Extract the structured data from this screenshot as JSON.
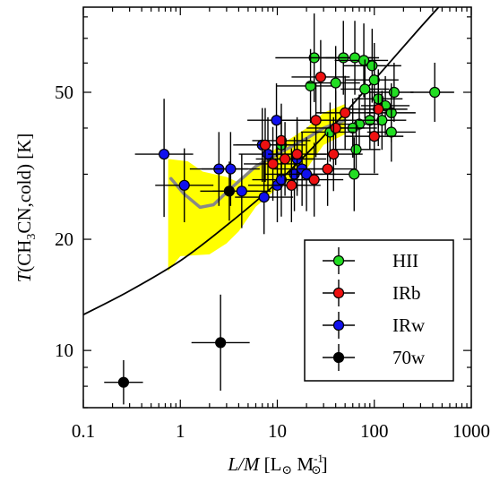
{
  "chart_data": {
    "type": "scatter",
    "xscale": "log",
    "yscale": "log",
    "xlim": [
      0.1,
      1000
    ],
    "ylim": [
      7,
      85
    ],
    "x_ticks": [
      "0.1",
      "1",
      "10",
      "100",
      "1000"
    ],
    "y_ticks": [
      "10",
      "20",
      "50"
    ],
    "xlabel": {
      "italic": "L/M",
      "rest": " [L",
      "sun": "⊙",
      "rest2": " M",
      "sup": "-1",
      "sun2": "⊙",
      "end": "]"
    },
    "ylabel": {
      "italic": "T",
      "rest": "(CH",
      "sub": "3",
      "rest2": "CN,cold) [K]"
    },
    "legend": {
      "position": "bottom-right"
    },
    "colors": {
      "HII": "#22dd22",
      "IRb": "#ee1111",
      "IRw": "#1111ee",
      "70w": "#000000",
      "band": "#ffff00",
      "median": "#888888",
      "model": "#000000"
    },
    "series": [
      {
        "name": "HII",
        "key": "HII",
        "points": [
          {
            "x": 24,
            "y": 62,
            "xerr": [
              0.4,
              0.3
            ],
            "yerr": [
              0.12,
              0.12
            ]
          },
          {
            "x": 48,
            "y": 62,
            "xerr": [
              0.35,
              0.3
            ],
            "yerr": [
              0.1,
              0.1
            ]
          },
          {
            "x": 63,
            "y": 62,
            "xerr": [
              0.3,
              0.25
            ],
            "yerr": [
              0.1,
              0.1
            ]
          },
          {
            "x": 78,
            "y": 61,
            "xerr": [
              0.3,
              0.25
            ],
            "yerr": [
              0.1,
              0.1
            ]
          },
          {
            "x": 95,
            "y": 59,
            "xerr": [
              0.3,
              0.3
            ],
            "yerr": [
              0.1,
              0.1
            ]
          },
          {
            "x": 22,
            "y": 52,
            "xerr": [
              0.35,
              0.3
            ],
            "yerr": [
              0.1,
              0.1
            ]
          },
          {
            "x": 40,
            "y": 53,
            "xerr": [
              0.3,
              0.25
            ],
            "yerr": [
              0.1,
              0.1
            ]
          },
          {
            "x": 80,
            "y": 51,
            "xerr": [
              0.25,
              0.25
            ],
            "yerr": [
              0.08,
              0.08
            ]
          },
          {
            "x": 100,
            "y": 54,
            "xerr": [
              0.3,
              0.25
            ],
            "yerr": [
              0.1,
              0.1
            ]
          },
          {
            "x": 160,
            "y": 50,
            "xerr": [
              0.25,
              0.2
            ],
            "yerr": [
              0.08,
              0.08
            ]
          },
          {
            "x": 420,
            "y": 50,
            "xerr": [
              0.25,
              0.2
            ],
            "yerr": [
              0.08,
              0.08
            ]
          },
          {
            "x": 110,
            "y": 48,
            "xerr": [
              0.25,
              0.25
            ],
            "yerr": [
              0.08,
              0.08
            ]
          },
          {
            "x": 130,
            "y": 46,
            "xerr": [
              0.25,
              0.25
            ],
            "yerr": [
              0.08,
              0.08
            ]
          },
          {
            "x": 150,
            "y": 44,
            "xerr": [
              0.25,
              0.25
            ],
            "yerr": [
              0.08,
              0.08
            ]
          },
          {
            "x": 90,
            "y": 42,
            "xerr": [
              0.25,
              0.25
            ],
            "yerr": [
              0.08,
              0.08
            ]
          },
          {
            "x": 70,
            "y": 41,
            "xerr": [
              0.25,
              0.25
            ],
            "yerr": [
              0.08,
              0.08
            ]
          },
          {
            "x": 120,
            "y": 42,
            "xerr": [
              0.25,
              0.25
            ],
            "yerr": [
              0.08,
              0.08
            ]
          },
          {
            "x": 60,
            "y": 40,
            "xerr": [
              0.25,
              0.25
            ],
            "yerr": [
              0.08,
              0.08
            ]
          },
          {
            "x": 35,
            "y": 39,
            "xerr": [
              0.3,
              0.25
            ],
            "yerr": [
              0.08,
              0.08
            ]
          },
          {
            "x": 150,
            "y": 39,
            "xerr": [
              0.25,
              0.25
            ],
            "yerr": [
              0.08,
              0.08
            ]
          },
          {
            "x": 11,
            "y": 36,
            "xerr": [
              0.25,
              0.25
            ],
            "yerr": [
              0.08,
              0.08
            ]
          },
          {
            "x": 65,
            "y": 35,
            "xerr": [
              0.25,
              0.25
            ],
            "yerr": [
              0.08,
              0.08
            ]
          },
          {
            "x": 62,
            "y": 30,
            "xerr": [
              0.25,
              0.25
            ],
            "yerr": [
              0.1,
              0.1
            ]
          }
        ]
      },
      {
        "name": "IRb",
        "key": "IRb",
        "points": [
          {
            "x": 28,
            "y": 55,
            "xerr": [
              0.3,
              0.3
            ],
            "yerr": [
              0.1,
              0.1
            ]
          },
          {
            "x": 110,
            "y": 45,
            "xerr": [
              0.3,
              0.3
            ],
            "yerr": [
              0.1,
              0.1
            ]
          },
          {
            "x": 50,
            "y": 44,
            "xerr": [
              0.3,
              0.3
            ],
            "yerr": [
              0.1,
              0.1
            ]
          },
          {
            "x": 25,
            "y": 42,
            "xerr": [
              0.35,
              0.3
            ],
            "yerr": [
              0.1,
              0.1
            ]
          },
          {
            "x": 40,
            "y": 40,
            "xerr": [
              0.3,
              0.3
            ],
            "yerr": [
              0.1,
              0.1
            ]
          },
          {
            "x": 11,
            "y": 37,
            "xerr": [
              0.3,
              0.3
            ],
            "yerr": [
              0.1,
              0.1
            ]
          },
          {
            "x": 100,
            "y": 38,
            "xerr": [
              0.3,
              0.3
            ],
            "yerr": [
              0.1,
              0.1
            ]
          },
          {
            "x": 7.5,
            "y": 36,
            "xerr": [
              0.3,
              0.3
            ],
            "yerr": [
              0.1,
              0.1
            ]
          },
          {
            "x": 16,
            "y": 34,
            "xerr": [
              0.3,
              0.3
            ],
            "yerr": [
              0.1,
              0.1
            ]
          },
          {
            "x": 38,
            "y": 34,
            "xerr": [
              0.3,
              0.3
            ],
            "yerr": [
              0.1,
              0.1
            ]
          },
          {
            "x": 33,
            "y": 31,
            "xerr": [
              0.3,
              0.3
            ],
            "yerr": [
              0.1,
              0.1
            ]
          },
          {
            "x": 24,
            "y": 29,
            "xerr": [
              0.3,
              0.3
            ],
            "yerr": [
              0.1,
              0.1
            ]
          },
          {
            "x": 14,
            "y": 28,
            "xerr": [
              0.3,
              0.3
            ],
            "yerr": [
              0.1,
              0.1
            ]
          },
          {
            "x": 9,
            "y": 32,
            "xerr": [
              0.3,
              0.3
            ],
            "yerr": [
              0.1,
              0.1
            ]
          },
          {
            "x": 12,
            "y": 33,
            "xerr": [
              0.3,
              0.3
            ],
            "yerr": [
              0.1,
              0.1
            ]
          }
        ]
      },
      {
        "name": "IRw",
        "key": "IRw",
        "points": [
          {
            "x": 0.68,
            "y": 34,
            "xerr": [
              0.3,
              0.3
            ],
            "yerr": [
              0.17,
              0.15
            ]
          },
          {
            "x": 1.1,
            "y": 28,
            "xerr": [
              0.3,
              0.3
            ],
            "yerr": [
              0.1,
              0.1
            ]
          },
          {
            "x": 2.5,
            "y": 31,
            "xerr": [
              0.3,
              0.3
            ],
            "yerr": [
              0.1,
              0.1
            ]
          },
          {
            "x": 3.3,
            "y": 31,
            "xerr": [
              0.3,
              0.3
            ],
            "yerr": [
              0.1,
              0.1
            ]
          },
          {
            "x": 4.3,
            "y": 27,
            "xerr": [
              0.3,
              0.3
            ],
            "yerr": [
              0.1,
              0.1
            ]
          },
          {
            "x": 7.3,
            "y": 26,
            "xerr": [
              0.3,
              0.3
            ],
            "yerr": [
              0.1,
              0.1
            ]
          },
          {
            "x": 7,
            "y": 36,
            "xerr": [
              0.3,
              0.3
            ],
            "yerr": [
              0.1,
              0.1
            ]
          },
          {
            "x": 8,
            "y": 34,
            "xerr": [
              0.3,
              0.3
            ],
            "yerr": [
              0.1,
              0.1
            ]
          },
          {
            "x": 9.8,
            "y": 42,
            "xerr": [
              0.3,
              0.3
            ],
            "yerr": [
              0.1,
              0.1
            ]
          },
          {
            "x": 10,
            "y": 28,
            "xerr": [
              0.3,
              0.3
            ],
            "yerr": [
              0.1,
              0.1
            ]
          },
          {
            "x": 11,
            "y": 29,
            "xerr": [
              0.3,
              0.3
            ],
            "yerr": [
              0.1,
              0.1
            ]
          },
          {
            "x": 15,
            "y": 30,
            "xerr": [
              0.3,
              0.3
            ],
            "yerr": [
              0.1,
              0.1
            ]
          },
          {
            "x": 18,
            "y": 31,
            "xerr": [
              0.3,
              0.3
            ],
            "yerr": [
              0.1,
              0.1
            ]
          },
          {
            "x": 20,
            "y": 30,
            "xerr": [
              0.3,
              0.3
            ],
            "yerr": [
              0.1,
              0.1
            ]
          },
          {
            "x": 16,
            "y": 33,
            "xerr": [
              0.3,
              0.3
            ],
            "yerr": [
              0.1,
              0.1
            ]
          }
        ]
      },
      {
        "name": "70w",
        "key": "70w",
        "points": [
          {
            "x": 0.26,
            "y": 8.2,
            "xerr": [
              0.2,
              0.2
            ],
            "yerr": [
              0.06,
              0.06
            ]
          },
          {
            "x": 2.6,
            "y": 10.5,
            "xerr": [
              0.3,
              0.3
            ],
            "yerr": [
              0.13,
              0.13
            ]
          },
          {
            "x": 3.2,
            "y": 27,
            "xerr": [
              0.3,
              0.3
            ],
            "yerr": [
              0.08,
              0.08
            ]
          }
        ]
      }
    ],
    "model_curve": [
      [
        0.1,
        12.5
      ],
      [
        0.3,
        14.5
      ],
      [
        1,
        17.5
      ],
      [
        3,
        21.8
      ],
      [
        10,
        28.5
      ],
      [
        30,
        38
      ],
      [
        100,
        54
      ],
      [
        300,
        75
      ],
      [
        500,
        87
      ]
    ],
    "shaded_band": {
      "upper": [
        [
          0.75,
          33
        ],
        [
          1.2,
          32.5
        ],
        [
          1.7,
          30.5
        ],
        [
          3,
          29.5
        ],
        [
          4,
          28.5
        ],
        [
          6,
          31.5
        ],
        [
          10,
          35.5
        ],
        [
          20,
          40
        ],
        [
          30,
          44
        ],
        [
          50,
          46.5
        ]
      ],
      "lower": [
        [
          0.75,
          16.4
        ],
        [
          1,
          18
        ],
        [
          2,
          18.2
        ],
        [
          3,
          19.5
        ],
        [
          4,
          21
        ],
        [
          6,
          24.5
        ],
        [
          10,
          27.5
        ],
        [
          20,
          31
        ],
        [
          30,
          36
        ],
        [
          50,
          38.5
        ]
      ]
    },
    "median_curve": [
      [
        0.8,
        29.2
      ],
      [
        1.1,
        26.5
      ],
      [
        1.6,
        24.4
      ],
      [
        2.2,
        24.8
      ],
      [
        3,
        26.8
      ],
      [
        4,
        28.7
      ],
      [
        6,
        31.5
      ],
      [
        10,
        34
      ],
      [
        20,
        37.5
      ],
      [
        30,
        40
      ],
      [
        50,
        42
      ]
    ]
  }
}
